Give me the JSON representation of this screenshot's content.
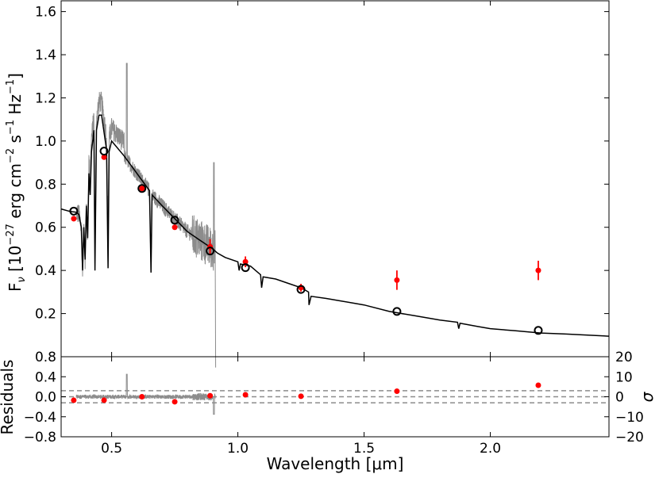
{
  "chart_data": [
    {
      "type": "scatter",
      "panel": "top",
      "title": "",
      "xlabel": "Wavelength [μm]",
      "ylabel_parts": {
        "fnu": "F",
        "sub": "ν",
        "rest": " [10",
        "exp1": "−27",
        "mid": " erg cm",
        "exp2": "−2",
        "mid2": " s",
        "exp3": "−1",
        "mid3": " Hz",
        "exp4": "−1",
        "end": "]"
      },
      "xlim": [
        0.3,
        2.47
      ],
      "ylim": [
        0.0,
        1.65
      ],
      "xticks": [
        0.5,
        1.0,
        1.5,
        2.0
      ],
      "xtick_labels": [
        "0.5",
        "1.0",
        "1.5",
        "2.0"
      ],
      "yticks": [
        0.2,
        0.4,
        0.6,
        0.8,
        1.0,
        1.2,
        1.4,
        1.6
      ],
      "ytick_labels": [
        "0.2",
        "0.4",
        "0.6",
        "0.8",
        "1.0",
        "1.2",
        "1.4",
        "1.6"
      ],
      "series": [
        {
          "name": "Observed photometry",
          "color": "#ff0000",
          "x": [
            0.35,
            0.47,
            0.62,
            0.75,
            0.89,
            1.03,
            1.25,
            1.63,
            2.19
          ],
          "y": [
            0.64,
            0.925,
            0.78,
            0.6,
            0.51,
            0.44,
            0.32,
            0.355,
            0.4
          ],
          "yerr": [
            0.012,
            0.012,
            0.012,
            0.012,
            0.035,
            0.025,
            0.018,
            0.045,
            0.045
          ]
        },
        {
          "name": "Synthetic photometry",
          "marker": "open-circle",
          "color": "#000000",
          "x": [
            0.35,
            0.47,
            0.62,
            0.75,
            0.89,
            1.03,
            1.25,
            1.63,
            2.19
          ],
          "y": [
            0.675,
            0.953,
            0.78,
            0.633,
            0.49,
            0.413,
            0.312,
            0.21,
            0.122
          ]
        },
        {
          "name": "Model spectrum",
          "color": "#000000",
          "x": [
            0.3,
            0.33,
            0.345,
            0.36,
            0.37,
            0.38,
            0.385,
            0.39,
            0.395,
            0.4,
            0.405,
            0.41,
            0.415,
            0.42,
            0.43,
            0.434,
            0.44,
            0.45,
            0.46,
            0.48,
            0.486,
            0.49,
            0.5,
            0.55,
            0.6,
            0.65,
            0.656,
            0.66,
            0.7,
            0.75,
            0.8,
            0.85,
            0.9,
            0.92,
            0.95,
            1.0,
            1.005,
            1.01,
            1.05,
            1.09,
            1.094,
            1.1,
            1.15,
            1.2,
            1.25,
            1.28,
            1.282,
            1.29,
            1.35,
            1.4,
            1.5,
            1.6,
            1.7,
            1.8,
            1.87,
            1.875,
            1.88,
            1.95,
            2.0,
            2.1,
            2.2,
            2.3,
            2.47
          ],
          "y": [
            0.685,
            0.675,
            0.672,
            0.67,
            0.66,
            0.6,
            0.4,
            0.6,
            0.45,
            0.7,
            0.55,
            0.85,
            0.75,
            0.95,
            1.05,
            0.4,
            1.05,
            1.12,
            1.12,
            0.96,
            0.41,
            0.95,
            1.0,
            0.93,
            0.85,
            0.77,
            0.39,
            0.75,
            0.7,
            0.64,
            0.58,
            0.54,
            0.5,
            0.48,
            0.46,
            0.44,
            0.4,
            0.43,
            0.42,
            0.38,
            0.32,
            0.37,
            0.36,
            0.34,
            0.32,
            0.3,
            0.24,
            0.28,
            0.27,
            0.26,
            0.24,
            0.21,
            0.19,
            0.17,
            0.16,
            0.13,
            0.155,
            0.14,
            0.13,
            0.12,
            0.11,
            0.105,
            0.095
          ]
        },
        {
          "name": "Observed spectrum",
          "color": "#8c8c8c",
          "x_range": [
            0.36,
            0.91
          ]
        }
      ]
    },
    {
      "type": "scatter",
      "panel": "bottom",
      "xlabel": "Wavelength [μm]",
      "ylabel": "Residuals",
      "ylabel_right": "σ",
      "xlim": [
        0.3,
        2.47
      ],
      "ylim": [
        -0.8,
        0.8
      ],
      "ylim_right": [
        -20,
        20
      ],
      "yticks": [
        -0.8,
        -0.4,
        0.0,
        0.4,
        0.8
      ],
      "ytick_labels": [
        "−0.8",
        "−0.4",
        "0.0",
        "0.4",
        "0.8"
      ],
      "yticks_right": [
        -20,
        -10,
        0,
        10,
        20
      ],
      "ytick_labels_right": [
        "−20",
        "−10",
        "0",
        "10",
        "20"
      ],
      "hlines": [
        -0.12,
        0.0,
        0.12
      ],
      "series": [
        {
          "name": "Photometric residuals",
          "color": "#ff0000",
          "x": [
            0.35,
            0.47,
            0.62,
            0.75,
            0.89,
            1.03,
            1.25,
            1.63,
            2.19
          ],
          "y": [
            -0.07,
            -0.07,
            0.0,
            -0.1,
            0.02,
            0.04,
            0.01,
            0.11,
            0.23
          ]
        },
        {
          "name": "Spectral residuals",
          "color": "#8c8c8c",
          "x_range": [
            0.36,
            0.91
          ]
        }
      ]
    }
  ]
}
